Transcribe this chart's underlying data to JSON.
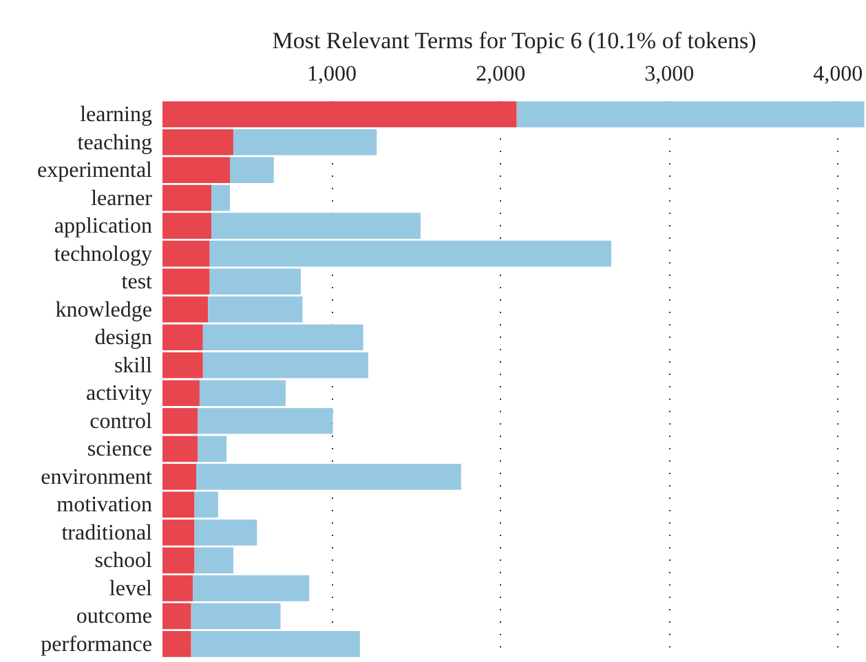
{
  "chart_data": {
    "type": "bar",
    "orientation": "horizontal",
    "title": "Most Relevant Terms for Topic 6 (10.1% of tokens)",
    "categories": [
      "learning",
      "teaching",
      "experimental",
      "learner",
      "application",
      "technology",
      "test",
      "knowledge",
      "design",
      "skill",
      "activity",
      "control",
      "science",
      "environment",
      "motivation",
      "traditional",
      "school",
      "level",
      "outcome",
      "performance"
    ],
    "series": [
      {
        "color": "#e8464f",
        "values": [
          2100,
          420,
          400,
          290,
          290,
          280,
          280,
          270,
          240,
          240,
          220,
          210,
          210,
          200,
          190,
          190,
          190,
          180,
          170,
          170
        ]
      },
      {
        "color": "#97c8e2",
        "values": [
          2060,
          850,
          260,
          110,
          1240,
          2380,
          540,
          560,
          950,
          980,
          510,
          800,
          170,
          1570,
          140,
          370,
          230,
          690,
          530,
          1000
        ]
      }
    ],
    "stacked": true,
    "xlim": [
      0,
      4170
    ],
    "xticks": [
      {
        "value": 1000,
        "label": "1,000"
      },
      {
        "value": 2000,
        "label": "2,000"
      },
      {
        "value": 3000,
        "label": "3,000"
      },
      {
        "value": 4000,
        "label": "4,000"
      }
    ],
    "grid": "x"
  }
}
